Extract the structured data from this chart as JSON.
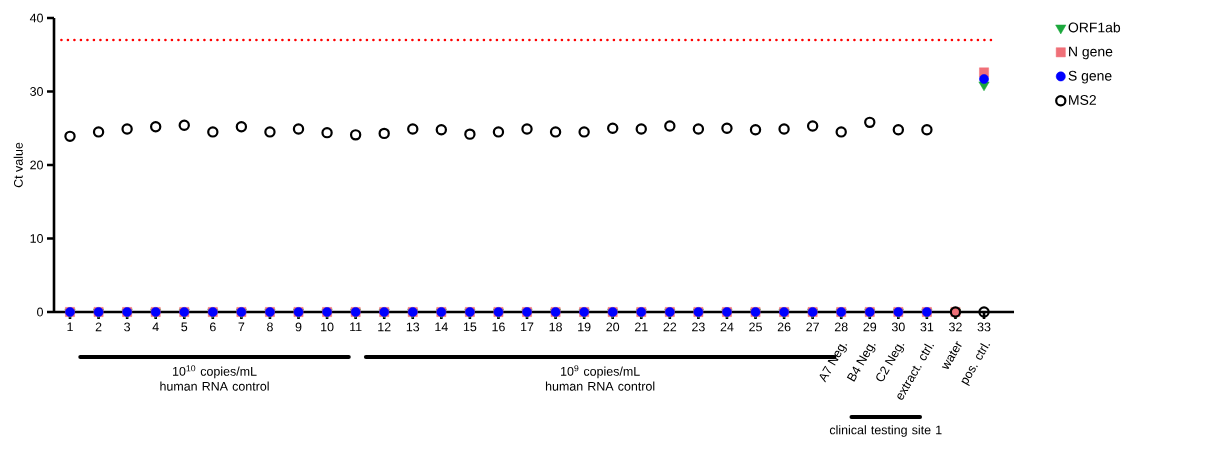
{
  "chart_data": {
    "type": "scatter",
    "ylabel": "Ct value",
    "categories": [
      "1",
      "2",
      "3",
      "4",
      "5",
      "6",
      "7",
      "8",
      "9",
      "10",
      "11",
      "12",
      "13",
      "14",
      "15",
      "16",
      "17",
      "18",
      "19",
      "20",
      "21",
      "22",
      "23",
      "24",
      "25",
      "26",
      "27",
      "28",
      "29",
      "30",
      "31",
      "32",
      "33"
    ],
    "series": [
      {
        "name": "ORF1ab",
        "color": "#1ca83c",
        "marker": "triangle",
        "values": [
          0,
          0,
          0,
          0,
          0,
          0,
          0,
          0,
          0,
          0,
          0,
          0,
          0,
          0,
          0,
          0,
          0,
          0,
          0,
          0,
          0,
          0,
          0,
          0,
          0,
          0,
          0,
          0,
          0,
          0,
          0,
          0,
          30.9
        ]
      },
      {
        "name": "N gene",
        "color": "#f07078",
        "marker": "square",
        "values": [
          0,
          0,
          0,
          0,
          0,
          0,
          0,
          0,
          0,
          0,
          0,
          0,
          0,
          0,
          0,
          0,
          0,
          0,
          0,
          0,
          0,
          0,
          0,
          0,
          0,
          0,
          0,
          0,
          0,
          0,
          0,
          0,
          32.6
        ]
      },
      {
        "name": "S gene",
        "color": "#0000ff",
        "marker": "circle",
        "values": [
          0,
          0,
          0,
          0,
          0,
          0,
          0,
          0,
          0,
          0,
          0,
          0,
          0,
          0,
          0,
          0,
          0,
          0,
          0,
          0,
          0,
          0,
          0,
          0,
          0,
          0,
          0,
          0,
          0,
          0,
          0,
          null,
          31.7
        ]
      },
      {
        "name": "MS2",
        "color": "#000000",
        "marker": "circle",
        "values": [
          23.9,
          24.5,
          24.9,
          25.2,
          25.4,
          24.5,
          25.2,
          24.5,
          24.9,
          24.4,
          24.1,
          24.3,
          24.9,
          24.8,
          24.2,
          24.5,
          24.9,
          24.5,
          24.5,
          25.0,
          24.9,
          25.3,
          24.9,
          25.0,
          24.8,
          24.9,
          25.3,
          24.5,
          25.8,
          24.8,
          24.8,
          0,
          0
        ]
      }
    ],
    "ylim": [
      0,
      40
    ],
    "yticks": [
      0,
      10,
      20,
      30,
      40
    ],
    "ref_lines": [
      {
        "axis": "y",
        "value": 37,
        "color": "#ff0000",
        "line_style": "dotted"
      }
    ],
    "legend": "top right",
    "annotations": [
      "A7 Neg.",
      "B4 Neg.",
      "C2 Neg.",
      "extract. ctrl.",
      "water",
      "pos. ctrl.",
      "10$^{10}$ copies/mL human RNA control",
      "10$^{9}$ copies/mL human RNA control",
      "clinical testing site 1"
    ]
  }
}
